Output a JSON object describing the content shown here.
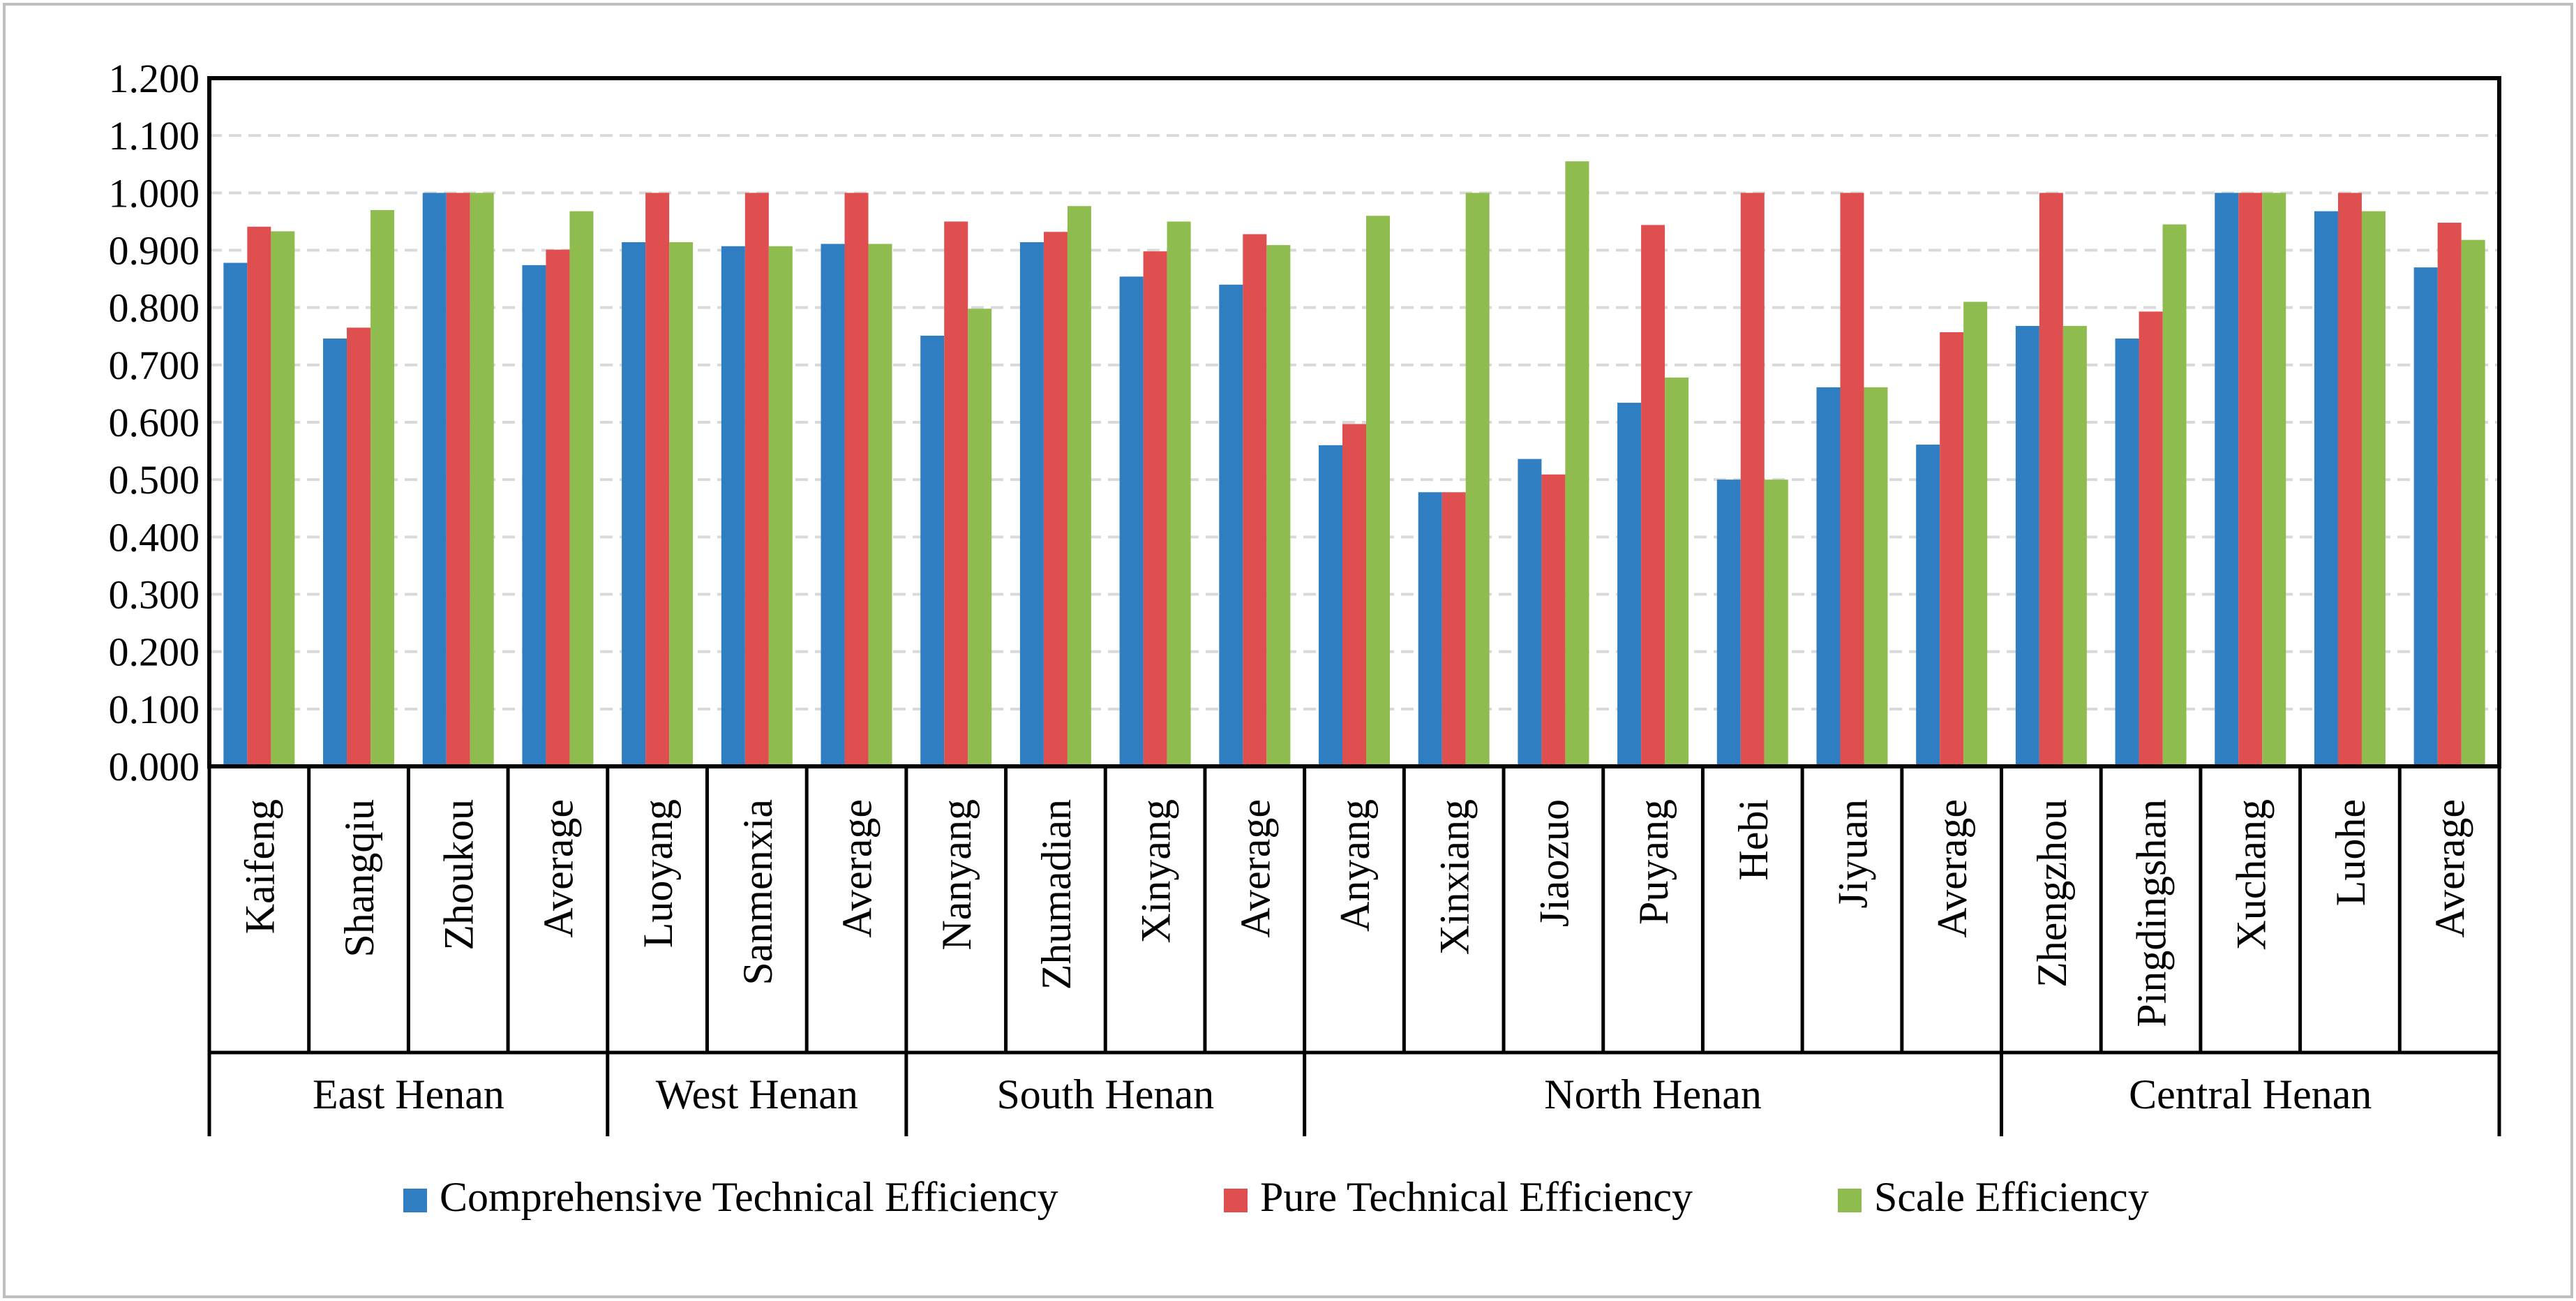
{
  "chart_data": {
    "type": "bar",
    "title": "",
    "xlabel": "",
    "ylabel": "",
    "ylim": [
      0,
      1.2
    ],
    "ytick_step": 0.1,
    "ytick_labels": [
      "0.000",
      "0.100",
      "0.200",
      "0.300",
      "0.400",
      "0.500",
      "0.600",
      "0.700",
      "0.800",
      "0.900",
      "1.000",
      "1.100",
      "1.200"
    ],
    "grid": true,
    "legend_position": "bottom",
    "groups": [
      {
        "label": "East Henan",
        "size": 4
      },
      {
        "label": "West Henan",
        "size": 3
      },
      {
        "label": "South Henan",
        "size": 4
      },
      {
        "label": "North Henan",
        "size": 7
      },
      {
        "label": "Central Henan",
        "size": 5
      }
    ],
    "categories": [
      "Kaifeng",
      "Shangqiu",
      "Zhoukou",
      "Average",
      "Luoyang",
      "Sanmenxia",
      "Average",
      "Nanyang",
      "Zhumadian",
      "Xinyang",
      "Average",
      "Anyang",
      "Xinxiang",
      "Jiaozuo",
      "Puyang",
      "Hebi",
      "Jiyuan",
      "Average",
      "Zhengzhou",
      "Pingdingshan",
      "Xuchang",
      "Luohe",
      "Average"
    ],
    "series": [
      {
        "name": "Comprehensive Technical Efficiency",
        "color": "#2E7EC1",
        "values": [
          0.878,
          0.746,
          1.0,
          0.874,
          0.914,
          0.907,
          0.911,
          0.751,
          0.914,
          0.854,
          0.84,
          0.56,
          0.478,
          0.536,
          0.634,
          0.5,
          0.661,
          0.561,
          0.768,
          0.746,
          1.0,
          0.968,
          0.87
        ]
      },
      {
        "name": "Pure Technical Efficiency",
        "color": "#E04F4F",
        "values": [
          0.941,
          0.765,
          1.0,
          0.901,
          1.0,
          1.0,
          1.0,
          0.95,
          0.932,
          0.898,
          0.928,
          0.597,
          0.478,
          0.509,
          0.944,
          1.0,
          1.0,
          0.757,
          1.0,
          0.793,
          1.0,
          1.0,
          0.948
        ]
      },
      {
        "name": "Scale Efficiency",
        "color": "#8FBC4F",
        "values": [
          0.933,
          0.97,
          1.0,
          0.968,
          0.914,
          0.907,
          0.911,
          0.798,
          0.977,
          0.95,
          0.909,
          0.96,
          1.0,
          1.055,
          0.678,
          0.5,
          0.661,
          0.81,
          0.768,
          0.945,
          1.0,
          0.968,
          0.918
        ]
      }
    ]
  }
}
